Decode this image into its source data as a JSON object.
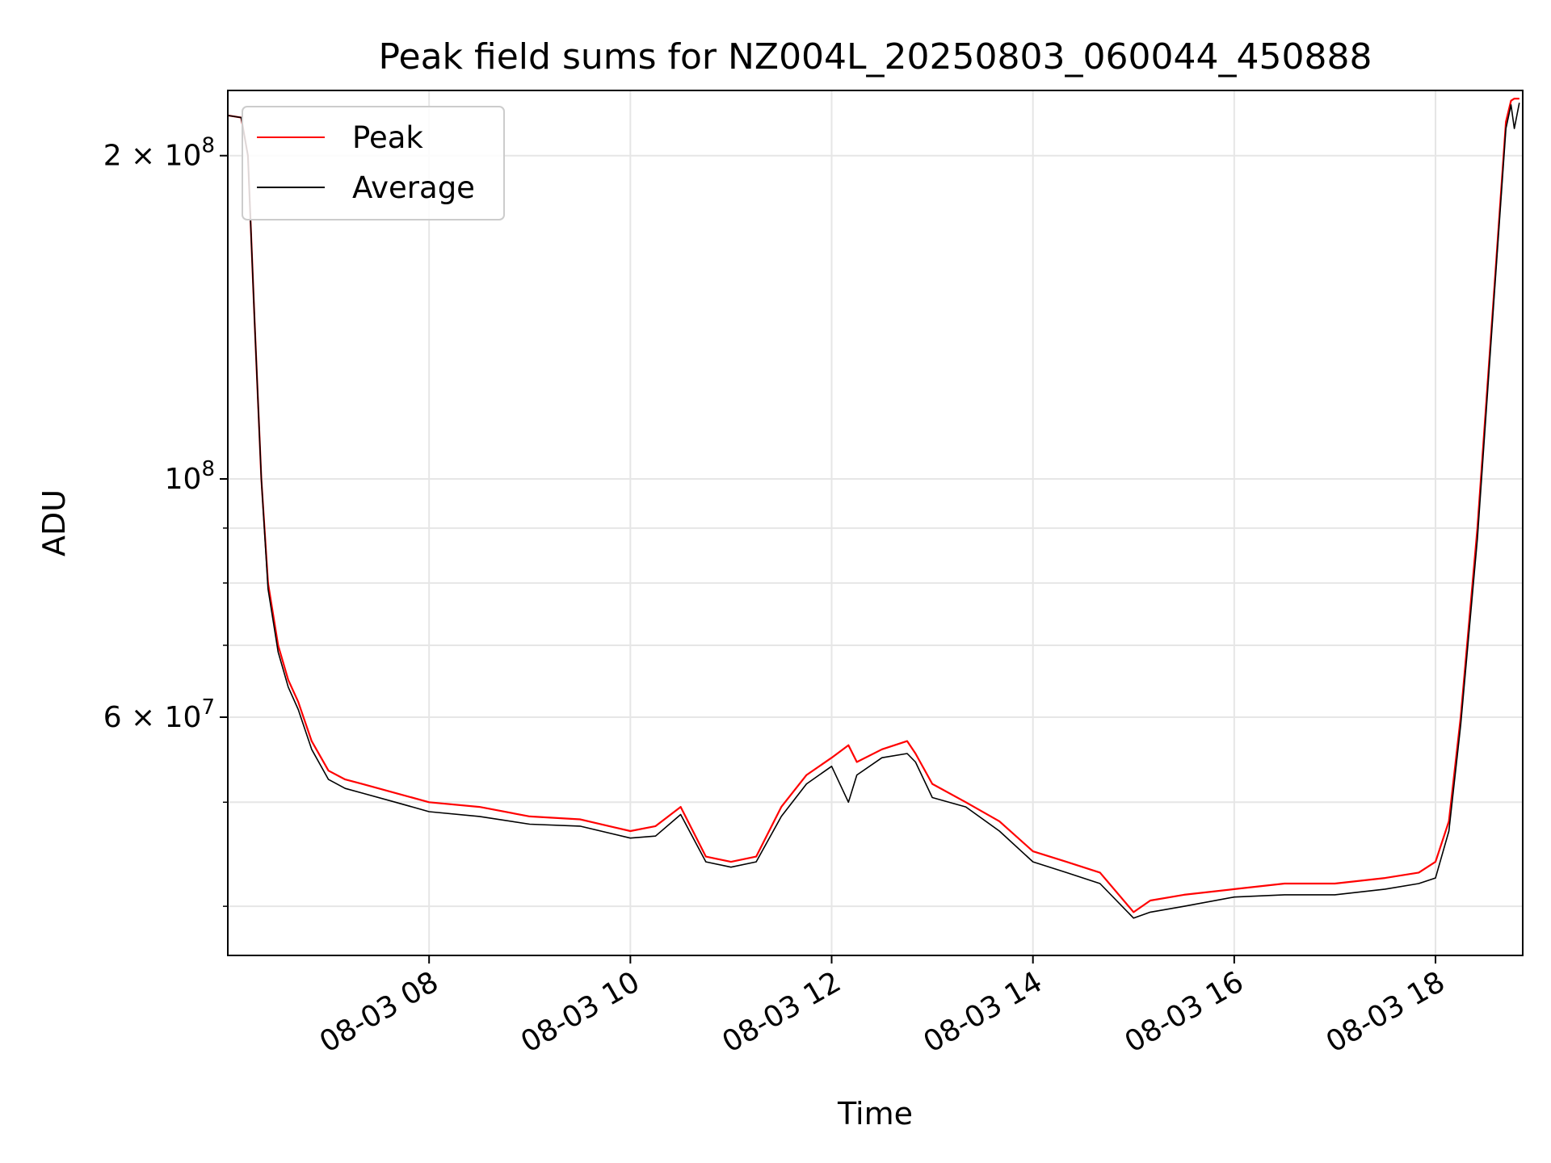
{
  "chart_data": {
    "type": "line",
    "title": "Peak field sums for NZ004L_20250803_060044_450888",
    "xlabel": "Time",
    "ylabel": "ADU",
    "y_scale": "log",
    "grid": true,
    "legend_position": "top-left",
    "xlim": [
      "2025-08-03 06:00",
      "2025-08-03 18:52"
    ],
    "ylim": [
      36000000,
      230000000
    ],
    "x_ticks": [
      {
        "value": "2025-08-03 08:00",
        "label": "08-03 08"
      },
      {
        "value": "2025-08-03 10:00",
        "label": "08-03 10"
      },
      {
        "value": "2025-08-03 12:00",
        "label": "08-03 12"
      },
      {
        "value": "2025-08-03 14:00",
        "label": "08-03 14"
      },
      {
        "value": "2025-08-03 16:00",
        "label": "08-03 16"
      },
      {
        "value": "2025-08-03 18:00",
        "label": "08-03 18"
      }
    ],
    "y_ticks": [
      {
        "value": 60000000,
        "mantissa": "6",
        "exponent": "7",
        "label": "6 × 10^7"
      },
      {
        "value": 100000000,
        "mantissa": "",
        "exponent": "8",
        "label": "10^8"
      },
      {
        "value": 200000000,
        "mantissa": "2",
        "exponent": "8",
        "label": "2 × 10^8"
      }
    ],
    "y_minor_ticks": [
      40000000,
      50000000,
      70000000,
      80000000,
      90000000
    ],
    "series": [
      {
        "name": "Peak",
        "color": "#ff0000",
        "x": [
          "2025-08-03 06:00",
          "2025-08-03 06:08",
          "2025-08-03 06:12",
          "2025-08-03 06:16",
          "2025-08-03 06:20",
          "2025-08-03 06:24",
          "2025-08-03 06:30",
          "2025-08-03 06:36",
          "2025-08-03 06:42",
          "2025-08-03 06:50",
          "2025-08-03 07:00",
          "2025-08-03 07:10",
          "2025-08-03 07:20",
          "2025-08-03 07:40",
          "2025-08-03 08:00",
          "2025-08-03 08:30",
          "2025-08-03 09:00",
          "2025-08-03 09:30",
          "2025-08-03 10:00",
          "2025-08-03 10:15",
          "2025-08-03 10:30",
          "2025-08-03 10:45",
          "2025-08-03 11:00",
          "2025-08-03 11:15",
          "2025-08-03 11:30",
          "2025-08-03 11:45",
          "2025-08-03 12:00",
          "2025-08-03 12:10",
          "2025-08-03 12:15",
          "2025-08-03 12:30",
          "2025-08-03 12:45",
          "2025-08-03 12:50",
          "2025-08-03 13:00",
          "2025-08-03 13:20",
          "2025-08-03 13:40",
          "2025-08-03 14:00",
          "2025-08-03 14:20",
          "2025-08-03 14:40",
          "2025-08-03 15:00",
          "2025-08-03 15:10",
          "2025-08-03 15:30",
          "2025-08-03 16:00",
          "2025-08-03 16:30",
          "2025-08-03 17:00",
          "2025-08-03 17:30",
          "2025-08-03 17:50",
          "2025-08-03 18:00",
          "2025-08-03 18:08",
          "2025-08-03 18:15",
          "2025-08-03 18:25",
          "2025-08-03 18:35",
          "2025-08-03 18:42",
          "2025-08-03 18:45",
          "2025-08-03 18:47",
          "2025-08-03 18:50"
        ],
        "values": [
          218000000,
          217000000,
          200000000,
          140000000,
          100000000,
          80000000,
          70000000,
          65000000,
          62000000,
          57000000,
          53500000,
          52500000,
          52000000,
          51000000,
          50000000,
          49500000,
          48500000,
          48200000,
          47000000,
          47500000,
          49500000,
          44500000,
          44000000,
          44500000,
          49500000,
          53000000,
          55000000,
          56500000,
          54500000,
          56000000,
          57000000,
          55500000,
          52000000,
          50000000,
          48000000,
          45000000,
          44000000,
          43000000,
          39500000,
          40500000,
          41000000,
          41500000,
          42000000,
          42000000,
          42500000,
          43000000,
          44000000,
          48000000,
          60000000,
          90000000,
          150000000,
          215000000,
          225000000,
          226000000,
          226000000
        ]
      },
      {
        "name": "Average",
        "color": "#000000",
        "x": [
          "2025-08-03 06:00",
          "2025-08-03 06:08",
          "2025-08-03 06:12",
          "2025-08-03 06:16",
          "2025-08-03 06:20",
          "2025-08-03 06:24",
          "2025-08-03 06:30",
          "2025-08-03 06:36",
          "2025-08-03 06:42",
          "2025-08-03 06:50",
          "2025-08-03 07:00",
          "2025-08-03 07:10",
          "2025-08-03 07:20",
          "2025-08-03 07:40",
          "2025-08-03 08:00",
          "2025-08-03 08:30",
          "2025-08-03 09:00",
          "2025-08-03 09:30",
          "2025-08-03 10:00",
          "2025-08-03 10:15",
          "2025-08-03 10:30",
          "2025-08-03 10:45",
          "2025-08-03 11:00",
          "2025-08-03 11:15",
          "2025-08-03 11:30",
          "2025-08-03 11:45",
          "2025-08-03 12:00",
          "2025-08-03 12:10",
          "2025-08-03 12:15",
          "2025-08-03 12:30",
          "2025-08-03 12:45",
          "2025-08-03 12:50",
          "2025-08-03 13:00",
          "2025-08-03 13:20",
          "2025-08-03 13:40",
          "2025-08-03 14:00",
          "2025-08-03 14:20",
          "2025-08-03 14:40",
          "2025-08-03 15:00",
          "2025-08-03 15:10",
          "2025-08-03 15:30",
          "2025-08-03 16:00",
          "2025-08-03 16:30",
          "2025-08-03 17:00",
          "2025-08-03 17:30",
          "2025-08-03 17:50",
          "2025-08-03 18:00",
          "2025-08-03 18:08",
          "2025-08-03 18:15",
          "2025-08-03 18:25",
          "2025-08-03 18:35",
          "2025-08-03 18:42",
          "2025-08-03 18:45",
          "2025-08-03 18:47",
          "2025-08-03 18:50"
        ],
        "values": [
          218000000,
          217000000,
          200000000,
          140000000,
          100000000,
          79000000,
          69000000,
          64000000,
          61000000,
          56000000,
          52500000,
          51500000,
          51000000,
          50000000,
          49000000,
          48500000,
          47700000,
          47500000,
          46300000,
          46500000,
          48700000,
          44000000,
          43500000,
          44000000,
          48500000,
          52000000,
          54000000,
          50000000,
          53000000,
          55000000,
          55500000,
          54500000,
          50500000,
          49500000,
          47000000,
          44000000,
          43000000,
          42000000,
          39000000,
          39500000,
          40000000,
          40800000,
          41000000,
          41000000,
          41500000,
          42000000,
          42500000,
          47000000,
          59000000,
          88000000,
          148000000,
          212000000,
          223000000,
          212000000,
          224000000
        ]
      }
    ]
  }
}
